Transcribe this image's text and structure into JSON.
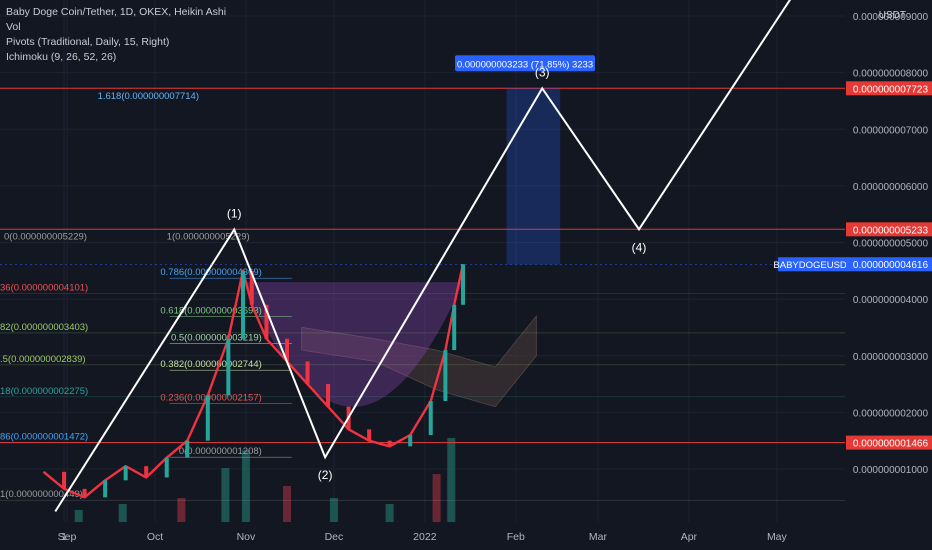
{
  "legend": {
    "symbol": "Baby Doge Coin/Tether, 1D, OKEX, Heikin Ashi",
    "vol": "Vol",
    "pivots": "Pivots (Traditional, Daily, 15, Right)",
    "ichimoku": "Ichimoku (9, 26, 52, 26)"
  },
  "colors": {
    "background": "#131722",
    "grid": "#1e2230",
    "up_candle": "#26a69a",
    "down_candle": "#ef3340",
    "projection": "#ffffff",
    "price_line": "#e53935",
    "current_price": "#2962ff",
    "cup": "#9c4dcc"
  },
  "chart_data": {
    "type": "line",
    "title": "Baby Doge Coin/Tether, 1D, OKEX, Heikin Ashi",
    "currency": "USDT",
    "y_unit": "USDT",
    "ylim": [
      2.5e-10,
      9.1e-09
    ],
    "y_ticks": [
      {
        "value": 9e-09,
        "label": "0.000000009000"
      },
      {
        "value": 8e-09,
        "label": "0.000000008000"
      },
      {
        "value": 7e-09,
        "label": "0.000000007000"
      },
      {
        "value": 6e-09,
        "label": "0.000000006000"
      },
      {
        "value": 5e-09,
        "label": "0.000000005000"
      },
      {
        "value": 4e-09,
        "label": "0.000000004000"
      },
      {
        "value": 3e-09,
        "label": "0.000000003000"
      },
      {
        "value": 2e-09,
        "label": "0.000000002000"
      },
      {
        "value": 1e-09,
        "label": "0.000000001000"
      }
    ],
    "x_ticks": [
      {
        "date": "2021-08-31",
        "label": "1"
      },
      {
        "date": "2021-09-01",
        "label": "Sep"
      },
      {
        "date": "2021-10-01",
        "label": "Oct"
      },
      {
        "date": "2021-11-01",
        "label": "Nov"
      },
      {
        "date": "2021-12-01",
        "label": "Dec"
      },
      {
        "date": "2022-01-01",
        "label": "2022"
      },
      {
        "date": "2022-02-01",
        "label": "Feb"
      },
      {
        "date": "2022-03-01",
        "label": "Mar"
      },
      {
        "date": "2022-04-01",
        "label": "Apr"
      },
      {
        "date": "2022-05-01",
        "label": "May"
      }
    ],
    "price_lines": [
      {
        "value": 7.723e-09,
        "label": "0.000000007723"
      },
      {
        "value": 5.233e-09,
        "label": "0.000000005233"
      },
      {
        "value": 1.466e-09,
        "label": "0.000000001466"
      }
    ],
    "current_price": {
      "symbol": "BABYDOGEUSDT",
      "value": 4.616e-09,
      "label": "0.000000004616"
    },
    "fib_upper": [
      {
        "label": "1.618(0.000000007714)",
        "value": 7.714e-09
      },
      {
        "label": "0(0.000000005229)",
        "value": 5.229e-09
      },
      {
        "label": "1(0.000000005229)",
        "value": 5.229e-09
      }
    ],
    "fib_levels": [
      {
        "label": "0.786(0.000000004369)",
        "value": 4.369e-09,
        "color": "#42a5f5"
      },
      {
        "label": "0.618(0.000000003693)",
        "value": 3.693e-09,
        "color": "#81c784"
      },
      {
        "label": "0.5(0.000000003219)",
        "value": 3.219e-09,
        "color": "#a5d6a7"
      },
      {
        "label": "0.382(0.000000002744)",
        "value": 2.744e-09,
        "color": "#c5e1a5"
      },
      {
        "label": "0.236(0.000000002157)",
        "value": 2.157e-09,
        "color": "#ef5350"
      },
      {
        "label": "0(0.000000001208)",
        "value": 1.208e-09,
        "color": "#9e9e9e"
      }
    ],
    "pivot_labels": [
      {
        "label": "36(0.000000004101)",
        "value": 4.101e-09,
        "color": "#ef5350"
      },
      {
        "label": "82(0.000000003403)",
        "value": 3.403e-09,
        "color": "#9ccc65"
      },
      {
        "label": ".5(0.000000002839)",
        "value": 2.839e-09,
        "color": "#9ccc65"
      },
      {
        "label": "18(0.000000002275)",
        "value": 2.275e-09,
        "color": "#26a69a"
      },
      {
        "label": "86(0.000000001472)",
        "value": 1.472e-09,
        "color": "#42a5f5"
      },
      {
        "label": "1(0.000000000449)",
        "value": 4.49e-10,
        "color": "#9e9e9e"
      }
    ],
    "measure_label": "0.000000003233 (71.85%) 3233",
    "measure_range": [
      4.616e-09,
      7.723e-09
    ],
    "projection_path": [
      {
        "date": "2021-08-28",
        "value": 2.5e-10,
        "label": ""
      },
      {
        "date": "2021-10-28",
        "value": 5.229e-09,
        "label": "(1)"
      },
      {
        "date": "2021-11-28",
        "value": 1.208e-09,
        "label": "(2)"
      },
      {
        "date": "2022-02-10",
        "value": 7.723e-09,
        "label": "(3)"
      },
      {
        "date": "2022-03-15",
        "value": 5.233e-09,
        "label": "(4)"
      },
      {
        "date": "2022-05-12",
        "value": 9.8e-09,
        "label": ""
      }
    ],
    "price_series": [
      {
        "date": "2021-08-24",
        "value": 9.5e-10
      },
      {
        "date": "2021-08-31",
        "value": 6.5e-10
      },
      {
        "date": "2021-09-07",
        "value": 5e-10
      },
      {
        "date": "2021-09-14",
        "value": 8e-10
      },
      {
        "date": "2021-09-21",
        "value": 1.05e-09
      },
      {
        "date": "2021-09-28",
        "value": 8.5e-10
      },
      {
        "date": "2021-10-05",
        "value": 1.2e-09
      },
      {
        "date": "2021-10-12",
        "value": 1.5e-09
      },
      {
        "date": "2021-10-19",
        "value": 2.3e-09
      },
      {
        "date": "2021-10-26",
        "value": 3.3e-09
      },
      {
        "date": "2021-10-31",
        "value": 4.5e-09
      },
      {
        "date": "2021-11-03",
        "value": 3.9e-09
      },
      {
        "date": "2021-11-08",
        "value": 3.3e-09
      },
      {
        "date": "2021-11-15",
        "value": 2.9e-09
      },
      {
        "date": "2021-11-22",
        "value": 2.5e-09
      },
      {
        "date": "2021-11-29",
        "value": 2.1e-09
      },
      {
        "date": "2021-12-06",
        "value": 1.7e-09
      },
      {
        "date": "2021-12-13",
        "value": 1.5e-09
      },
      {
        "date": "2021-12-20",
        "value": 1.4e-09
      },
      {
        "date": "2021-12-27",
        "value": 1.6e-09
      },
      {
        "date": "2022-01-03",
        "value": 2.2e-09
      },
      {
        "date": "2022-01-08",
        "value": 3.1e-09
      },
      {
        "date": "2022-01-11",
        "value": 3.9e-09
      },
      {
        "date": "2022-01-14",
        "value": 4.616e-09
      }
    ],
    "ichimoku_cloud_upper": [
      {
        "date": "2021-11-20",
        "value": 3.5e-09
      },
      {
        "date": "2021-12-15",
        "value": 3.3e-09
      },
      {
        "date": "2022-01-05",
        "value": 3.1e-09
      },
      {
        "date": "2022-01-25",
        "value": 2.8e-09
      },
      {
        "date": "2022-02-08",
        "value": 3.7e-09
      }
    ],
    "ichimoku_cloud_lower": [
      {
        "date": "2021-11-20",
        "value": 3.1e-09
      },
      {
        "date": "2021-12-15",
        "value": 2.9e-09
      },
      {
        "date": "2022-01-05",
        "value": 2.4e-09
      },
      {
        "date": "2022-01-25",
        "value": 2.1e-09
      },
      {
        "date": "2022-02-08",
        "value": 3e-09
      }
    ],
    "volume": [
      {
        "date": "2021-09-05",
        "value": 2
      },
      {
        "date": "2021-09-20",
        "value": 3
      },
      {
        "date": "2021-10-10",
        "value": 4
      },
      {
        "date": "2021-10-25",
        "value": 9
      },
      {
        "date": "2021-11-01",
        "value": 12
      },
      {
        "date": "2021-11-15",
        "value": 6
      },
      {
        "date": "2021-12-01",
        "value": 4
      },
      {
        "date": "2021-12-20",
        "value": 3
      },
      {
        "date": "2022-01-05",
        "value": 8
      },
      {
        "date": "2022-01-10",
        "value": 14
      }
    ],
    "grid": true
  }
}
